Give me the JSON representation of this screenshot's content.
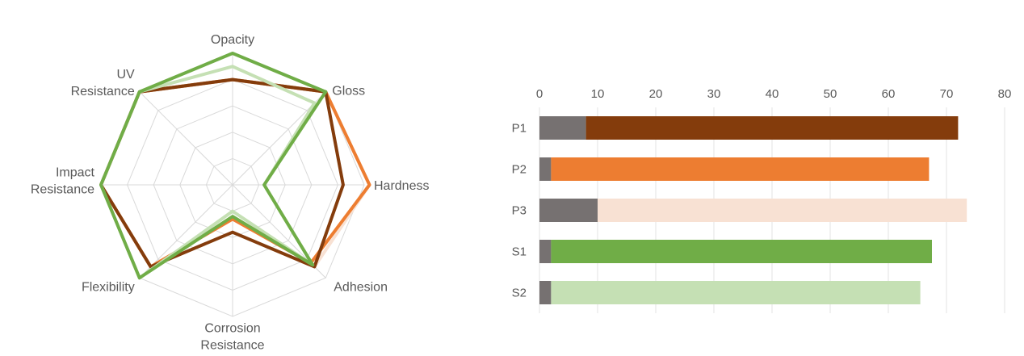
{
  "chart_data": [
    {
      "type": "radar",
      "axes": [
        "Opacity",
        "Gloss",
        "Hardness",
        "Adhesion",
        "Corrosion Resistance",
        "Flexibility",
        "Impact Resistance",
        "UV Resistance"
      ],
      "axis_label_lines": [
        [
          "Opacity"
        ],
        [
          "Gloss"
        ],
        [
          "Hardness"
        ],
        [
          "Adhesion"
        ],
        [
          "Corrosion",
          "Resistance"
        ],
        [
          "Flexibility"
        ],
        [
          "Impact",
          "Resistance"
        ],
        [
          "UV",
          "Resistance"
        ]
      ],
      "range": [
        0,
        5
      ],
      "grid": true,
      "series": [
        {
          "color": "#f8e1d3",
          "values": [
            4.0,
            5.0,
            5.2,
            4.4,
            1.8,
            4.4,
            5.0,
            5.0
          ]
        },
        {
          "color": "#ed7d31",
          "values": [
            4.0,
            5.0,
            5.2,
            4.2,
            1.3,
            4.4,
            5.0,
            5.0
          ]
        },
        {
          "color": "#843c0c",
          "values": [
            4.0,
            5.0,
            4.2,
            4.4,
            1.8,
            4.4,
            5.0,
            5.0
          ]
        },
        {
          "color": "#c5e0b4",
          "values": [
            4.5,
            4.4,
            1.2,
            4.3,
            1.0,
            5.0,
            5.0,
            5.0
          ]
        },
        {
          "color": "#70ad47",
          "values": [
            5.0,
            5.0,
            1.2,
            4.3,
            1.2,
            5.0,
            5.0,
            5.0
          ]
        }
      ]
    },
    {
      "type": "bar",
      "orientation": "horizontal",
      "stacked": true,
      "categories": [
        "P1",
        "P2",
        "P3",
        "S1",
        "S2"
      ],
      "xlim": [
        0,
        80
      ],
      "xticks": [
        0,
        10,
        20,
        30,
        40,
        50,
        60,
        70,
        80
      ],
      "axis_position": "top",
      "grid": true,
      "base_color": "#767171",
      "base_values": [
        8,
        2,
        10,
        2,
        2
      ],
      "values": [
        64,
        65,
        63.5,
        65.5,
        63.5
      ],
      "colors": [
        "#843c0c",
        "#ed7d31",
        "#f8e1d3",
        "#70ad47",
        "#c5e0b4"
      ]
    }
  ]
}
